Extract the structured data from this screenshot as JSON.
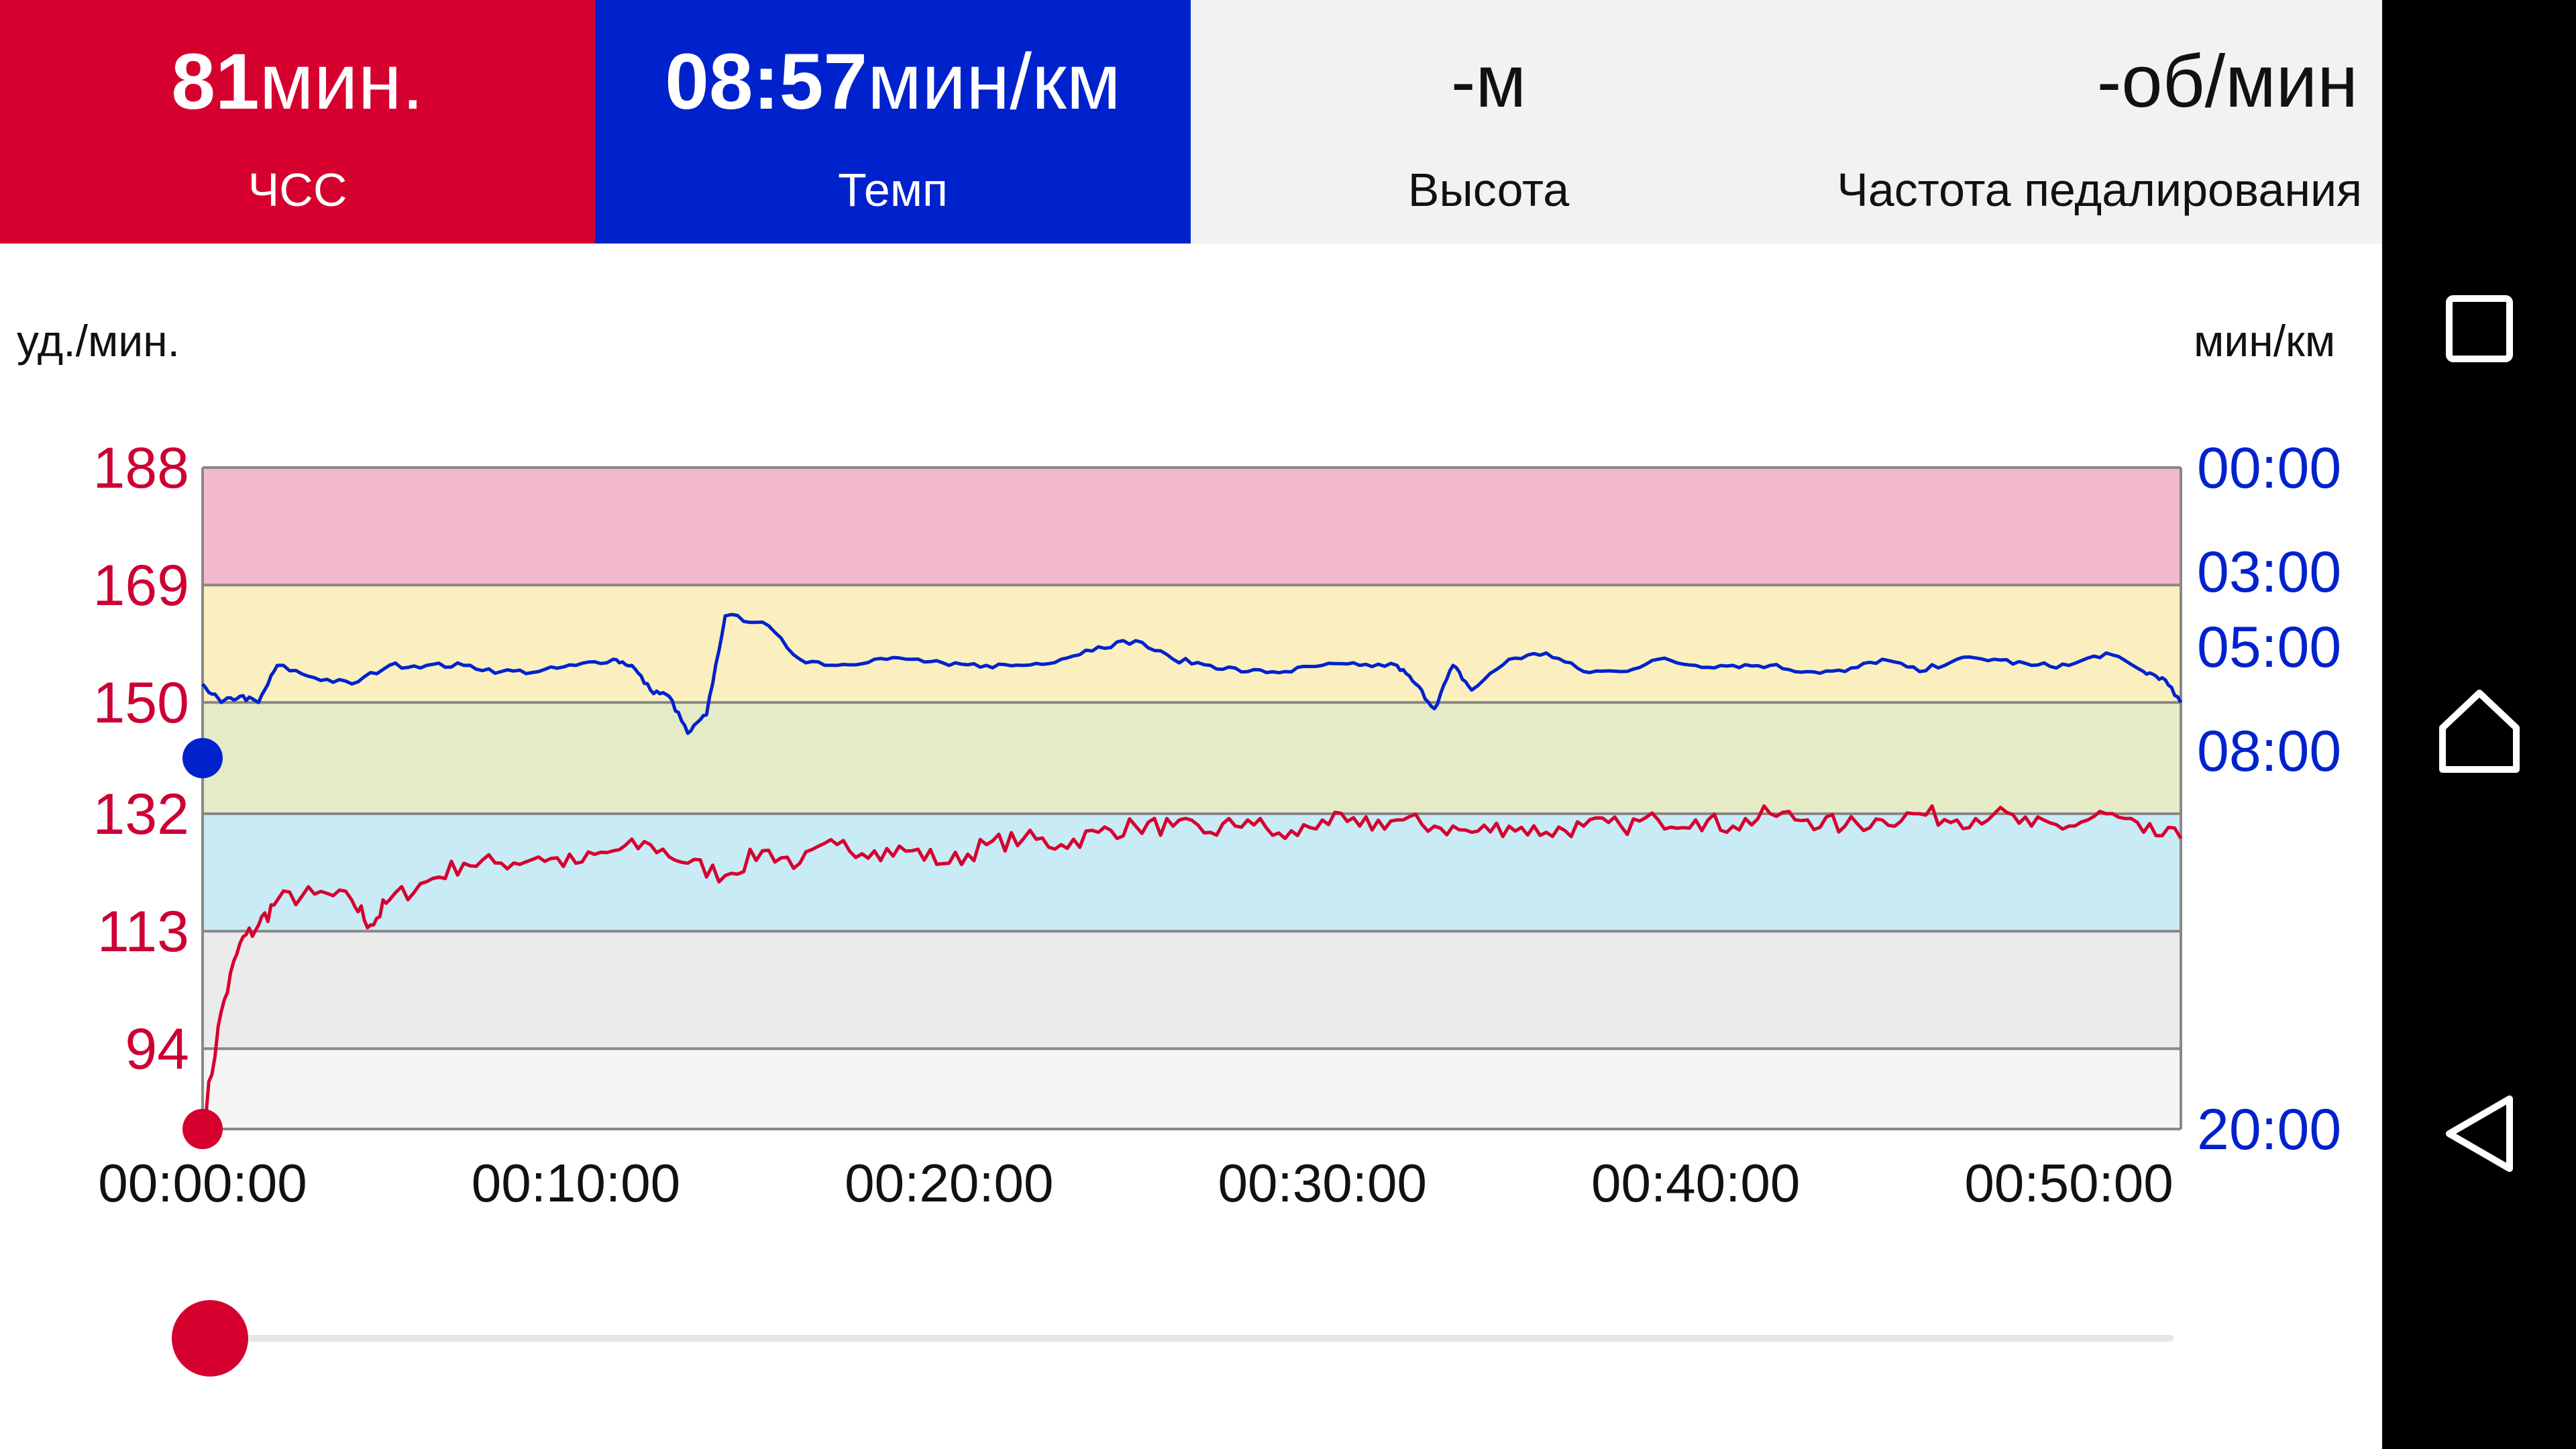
{
  "stats": {
    "heart_rate": {
      "value": "81",
      "unit": "мин.",
      "label": "ЧСС",
      "color": "#d6002f"
    },
    "pace": {
      "value": "08:57",
      "unit": "мин/км",
      "label": "Темп",
      "color": "#0022cc"
    },
    "altitude": {
      "value": "-м",
      "label": "Высота"
    },
    "cadence": {
      "value": "-об/мин",
      "label": "Частота педалирования"
    }
  },
  "chart": {
    "left_unit": "уд./мин.",
    "right_unit": "мин/км",
    "left_ticks": [
      "188",
      "169",
      "150",
      "132",
      "113",
      "94"
    ],
    "right_ticks": [
      "00:00",
      "03:00",
      "05:00",
      "08:00",
      "20:00"
    ],
    "x_ticks": [
      "00:00:00",
      "00:10:00",
      "00:20:00",
      "00:30:00",
      "00:40:00",
      "00:50:00"
    ]
  },
  "chart_data": {
    "type": "line",
    "x_unit": "hh:mm:ss",
    "xlim": [
      "00:00:00",
      "00:53:00"
    ],
    "y_left": {
      "label": "уд./мин.",
      "ylim": [
        81,
        188
      ],
      "ticks": [
        188,
        169,
        150,
        132,
        113,
        94
      ]
    },
    "y_right": {
      "label": "мин/км",
      "ticks": [
        "00:00",
        "03:00",
        "05:00",
        "08:00",
        "20:00"
      ]
    },
    "zones": [
      {
        "from": 169,
        "to": 188,
        "color": "#f3b8cd"
      },
      {
        "from": 150,
        "to": 169,
        "color": "#fbefc0"
      },
      {
        "from": 132,
        "to": 150,
        "color": "#e4ebc6"
      },
      {
        "from": 113,
        "to": 132,
        "color": "#c9ebf5"
      },
      {
        "from": 94,
        "to": 113,
        "color": "#ebebeb"
      },
      {
        "from": 81,
        "to": 94,
        "color": "#f5f5f5"
      }
    ],
    "series": [
      {
        "axis": "left",
        "color": "#d6002f",
        "points": [
          [
            "00:00:00",
            81
          ],
          [
            "00:00:30",
            100
          ],
          [
            "00:01:00",
            111
          ],
          [
            "00:01:30",
            114
          ],
          [
            "00:02:00",
            118
          ],
          [
            "00:03:00",
            119
          ],
          [
            "00:04:00",
            118
          ],
          [
            "00:04:30",
            114
          ],
          [
            "00:05:00",
            118
          ],
          [
            "00:06:00",
            121
          ],
          [
            "00:07:00",
            124
          ],
          [
            "00:08:00",
            124
          ],
          [
            "00:09:00",
            125
          ],
          [
            "00:10:00",
            124
          ],
          [
            "00:11:00",
            126
          ],
          [
            "00:12:00",
            127
          ],
          [
            "00:13:00",
            124
          ],
          [
            "00:14:00",
            122
          ],
          [
            "00:15:00",
            126
          ],
          [
            "00:16:00",
            124
          ],
          [
            "00:17:00",
            127
          ],
          [
            "00:18:00",
            126
          ],
          [
            "00:19:00",
            126
          ],
          [
            "00:20:00",
            124
          ],
          [
            "00:21:00",
            127
          ],
          [
            "00:22:00",
            128
          ],
          [
            "00:23:00",
            127
          ],
          [
            "00:24:00",
            129
          ],
          [
            "00:25:00",
            130
          ],
          [
            "00:26:00",
            130
          ],
          [
            "00:27:00",
            129
          ],
          [
            "00:28:00",
            131
          ],
          [
            "00:29:00",
            128
          ],
          [
            "00:30:00",
            131
          ],
          [
            "00:31:00",
            130
          ],
          [
            "00:32:00",
            131
          ],
          [
            "00:33:00",
            130
          ],
          [
            "00:34:00",
            129
          ],
          [
            "00:35:00",
            130
          ],
          [
            "00:36:00",
            129
          ],
          [
            "00:37:00",
            130
          ],
          [
            "00:38:00",
            130
          ],
          [
            "00:39:00",
            131
          ],
          [
            "00:40:00",
            131
          ],
          [
            "00:41:00",
            130
          ],
          [
            "00:42:00",
            132
          ],
          [
            "00:43:00",
            131
          ],
          [
            "00:44:00",
            130
          ],
          [
            "00:45:00",
            131
          ],
          [
            "00:46:00",
            132
          ],
          [
            "00:47:00",
            131
          ],
          [
            "00:48:00",
            132
          ],
          [
            "00:49:00",
            130
          ],
          [
            "00:50:00",
            130
          ],
          [
            "00:51:00",
            132
          ],
          [
            "00:52:00",
            129
          ],
          [
            "00:53:00",
            128
          ]
        ]
      },
      {
        "axis": "right",
        "color": "#0022cc",
        "points": [
          [
            "00:00:00",
            153
          ],
          [
            "00:00:30",
            150
          ],
          [
            "00:01:00",
            151
          ],
          [
            "00:01:30",
            150
          ],
          [
            "00:02:00",
            156
          ],
          [
            "00:03:00",
            154
          ],
          [
            "00:04:00",
            153
          ],
          [
            "00:05:00",
            156
          ],
          [
            "00:06:00",
            156
          ],
          [
            "00:07:00",
            156
          ],
          [
            "00:08:00",
            155
          ],
          [
            "00:09:00",
            155
          ],
          [
            "00:10:00",
            156
          ],
          [
            "00:11:00",
            157
          ],
          [
            "00:11:30",
            156
          ],
          [
            "00:12:00",
            152
          ],
          [
            "00:12:30",
            151
          ],
          [
            "00:13:00",
            145
          ],
          [
            "00:13:30",
            148
          ],
          [
            "00:14:00",
            164
          ],
          [
            "00:15:00",
            163
          ],
          [
            "00:16:00",
            157
          ],
          [
            "00:17:00",
            156
          ],
          [
            "00:18:00",
            157
          ],
          [
            "00:19:00",
            157
          ],
          [
            "00:20:00",
            156
          ],
          [
            "00:21:00",
            156
          ],
          [
            "00:22:00",
            156
          ],
          [
            "00:23:00",
            157
          ],
          [
            "00:24:00",
            159
          ],
          [
            "00:25:00",
            160
          ],
          [
            "00:26:00",
            157
          ],
          [
            "00:27:00",
            156
          ],
          [
            "00:28:00",
            155
          ],
          [
            "00:29:00",
            155
          ],
          [
            "00:30:00",
            156
          ],
          [
            "00:31:00",
            156
          ],
          [
            "00:32:00",
            156
          ],
          [
            "00:32:30",
            153
          ],
          [
            "00:33:00",
            149
          ],
          [
            "00:33:30",
            156
          ],
          [
            "00:34:00",
            152
          ],
          [
            "00:35:00",
            157
          ],
          [
            "00:36:00",
            158
          ],
          [
            "00:37:00",
            155
          ],
          [
            "00:38:00",
            155
          ],
          [
            "00:39:00",
            157
          ],
          [
            "00:40:00",
            156
          ],
          [
            "00:41:00",
            156
          ],
          [
            "00:42:00",
            156
          ],
          [
            "00:43:00",
            155
          ],
          [
            "00:44:00",
            155
          ],
          [
            "00:45:00",
            157
          ],
          [
            "00:46:00",
            155
          ],
          [
            "00:47:00",
            157
          ],
          [
            "00:48:00",
            157
          ],
          [
            "00:49:00",
            156
          ],
          [
            "00:50:00",
            156
          ],
          [
            "00:51:00",
            158
          ],
          [
            "00:52:00",
            155
          ],
          [
            "00:52:30",
            154
          ],
          [
            "00:53:00",
            150
          ]
        ]
      }
    ]
  },
  "slider": {
    "position_fraction": 0.0
  },
  "colors": {
    "hr": "#d6002f",
    "pace": "#0022cc",
    "grid": "#888888"
  },
  "nav": {
    "recents": "square-icon",
    "home": "home-icon",
    "back": "back-triangle-icon"
  }
}
